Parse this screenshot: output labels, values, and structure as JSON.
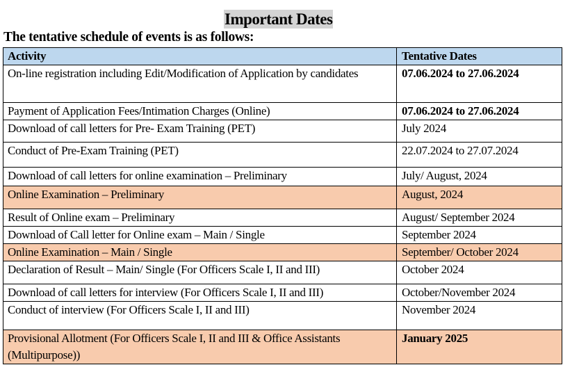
{
  "title": "Important Dates",
  "subtitle": "The tentative schedule of events is as follows:",
  "colors": {
    "header_bg": "#bdd7ee",
    "highlight_bg": "#f8cbad",
    "title_bg": "#d4d4d4"
  },
  "table": {
    "headers": [
      "Activity",
      "Tentative Dates"
    ],
    "rows": [
      {
        "activity": "On-line registration including Edit/Modification of Application by candidates",
        "date": "07.06.2024 to 27.06.2024",
        "bold_date": true,
        "highlight": false
      },
      {
        "activity": "Payment of Application Fees/Intimation Charges (Online)",
        "date": "07.06.2024 to 27.06.2024",
        "bold_date": true,
        "highlight": false
      },
      {
        "activity": "Download of call letters for Pre- Exam Training (PET)",
        "date": "July 2024",
        "bold_date": false,
        "highlight": false
      },
      {
        "activity": "Conduct of Pre-Exam Training (PET)",
        "date": "22.07.2024 to 27.07.2024",
        "bold_date": false,
        "highlight": false
      },
      {
        "activity": "Download of call letters for online examination – Preliminary",
        "date": "July/ August, 2024",
        "bold_date": false,
        "highlight": false
      },
      {
        "activity": "Online Examination – Preliminary",
        "date": "August, 2024",
        "bold_date": false,
        "highlight": true
      },
      {
        "activity": "Result of Online exam – Preliminary",
        "date": "August/ September 2024",
        "bold_date": false,
        "highlight": false
      },
      {
        "activity": "Download of Call letter for Online exam – Main / Single",
        "date": "September 2024",
        "bold_date": false,
        "highlight": false
      },
      {
        "activity": "Online Examination – Main / Single",
        "date": "September/ October 2024",
        "bold_date": false,
        "highlight": true
      },
      {
        "activity": "Declaration of Result – Main/ Single (For Officers Scale I, II and III)",
        "date": "October 2024",
        "bold_date": false,
        "highlight": false
      },
      {
        "activity": "Download of call letters for interview (For Officers Scale I, II and III)",
        "date": "October/November 2024",
        "bold_date": false,
        "highlight": false
      },
      {
        "activity": "Conduct of interview (For Officers Scale I, II and III)",
        "date": "November 2024",
        "bold_date": false,
        "highlight": false
      },
      {
        "activity": "Provisional Allotment (For Officers Scale I, II and III & Office Assistants (Multipurpose))",
        "date": "January 2025",
        "bold_date": true,
        "highlight": true
      }
    ]
  }
}
